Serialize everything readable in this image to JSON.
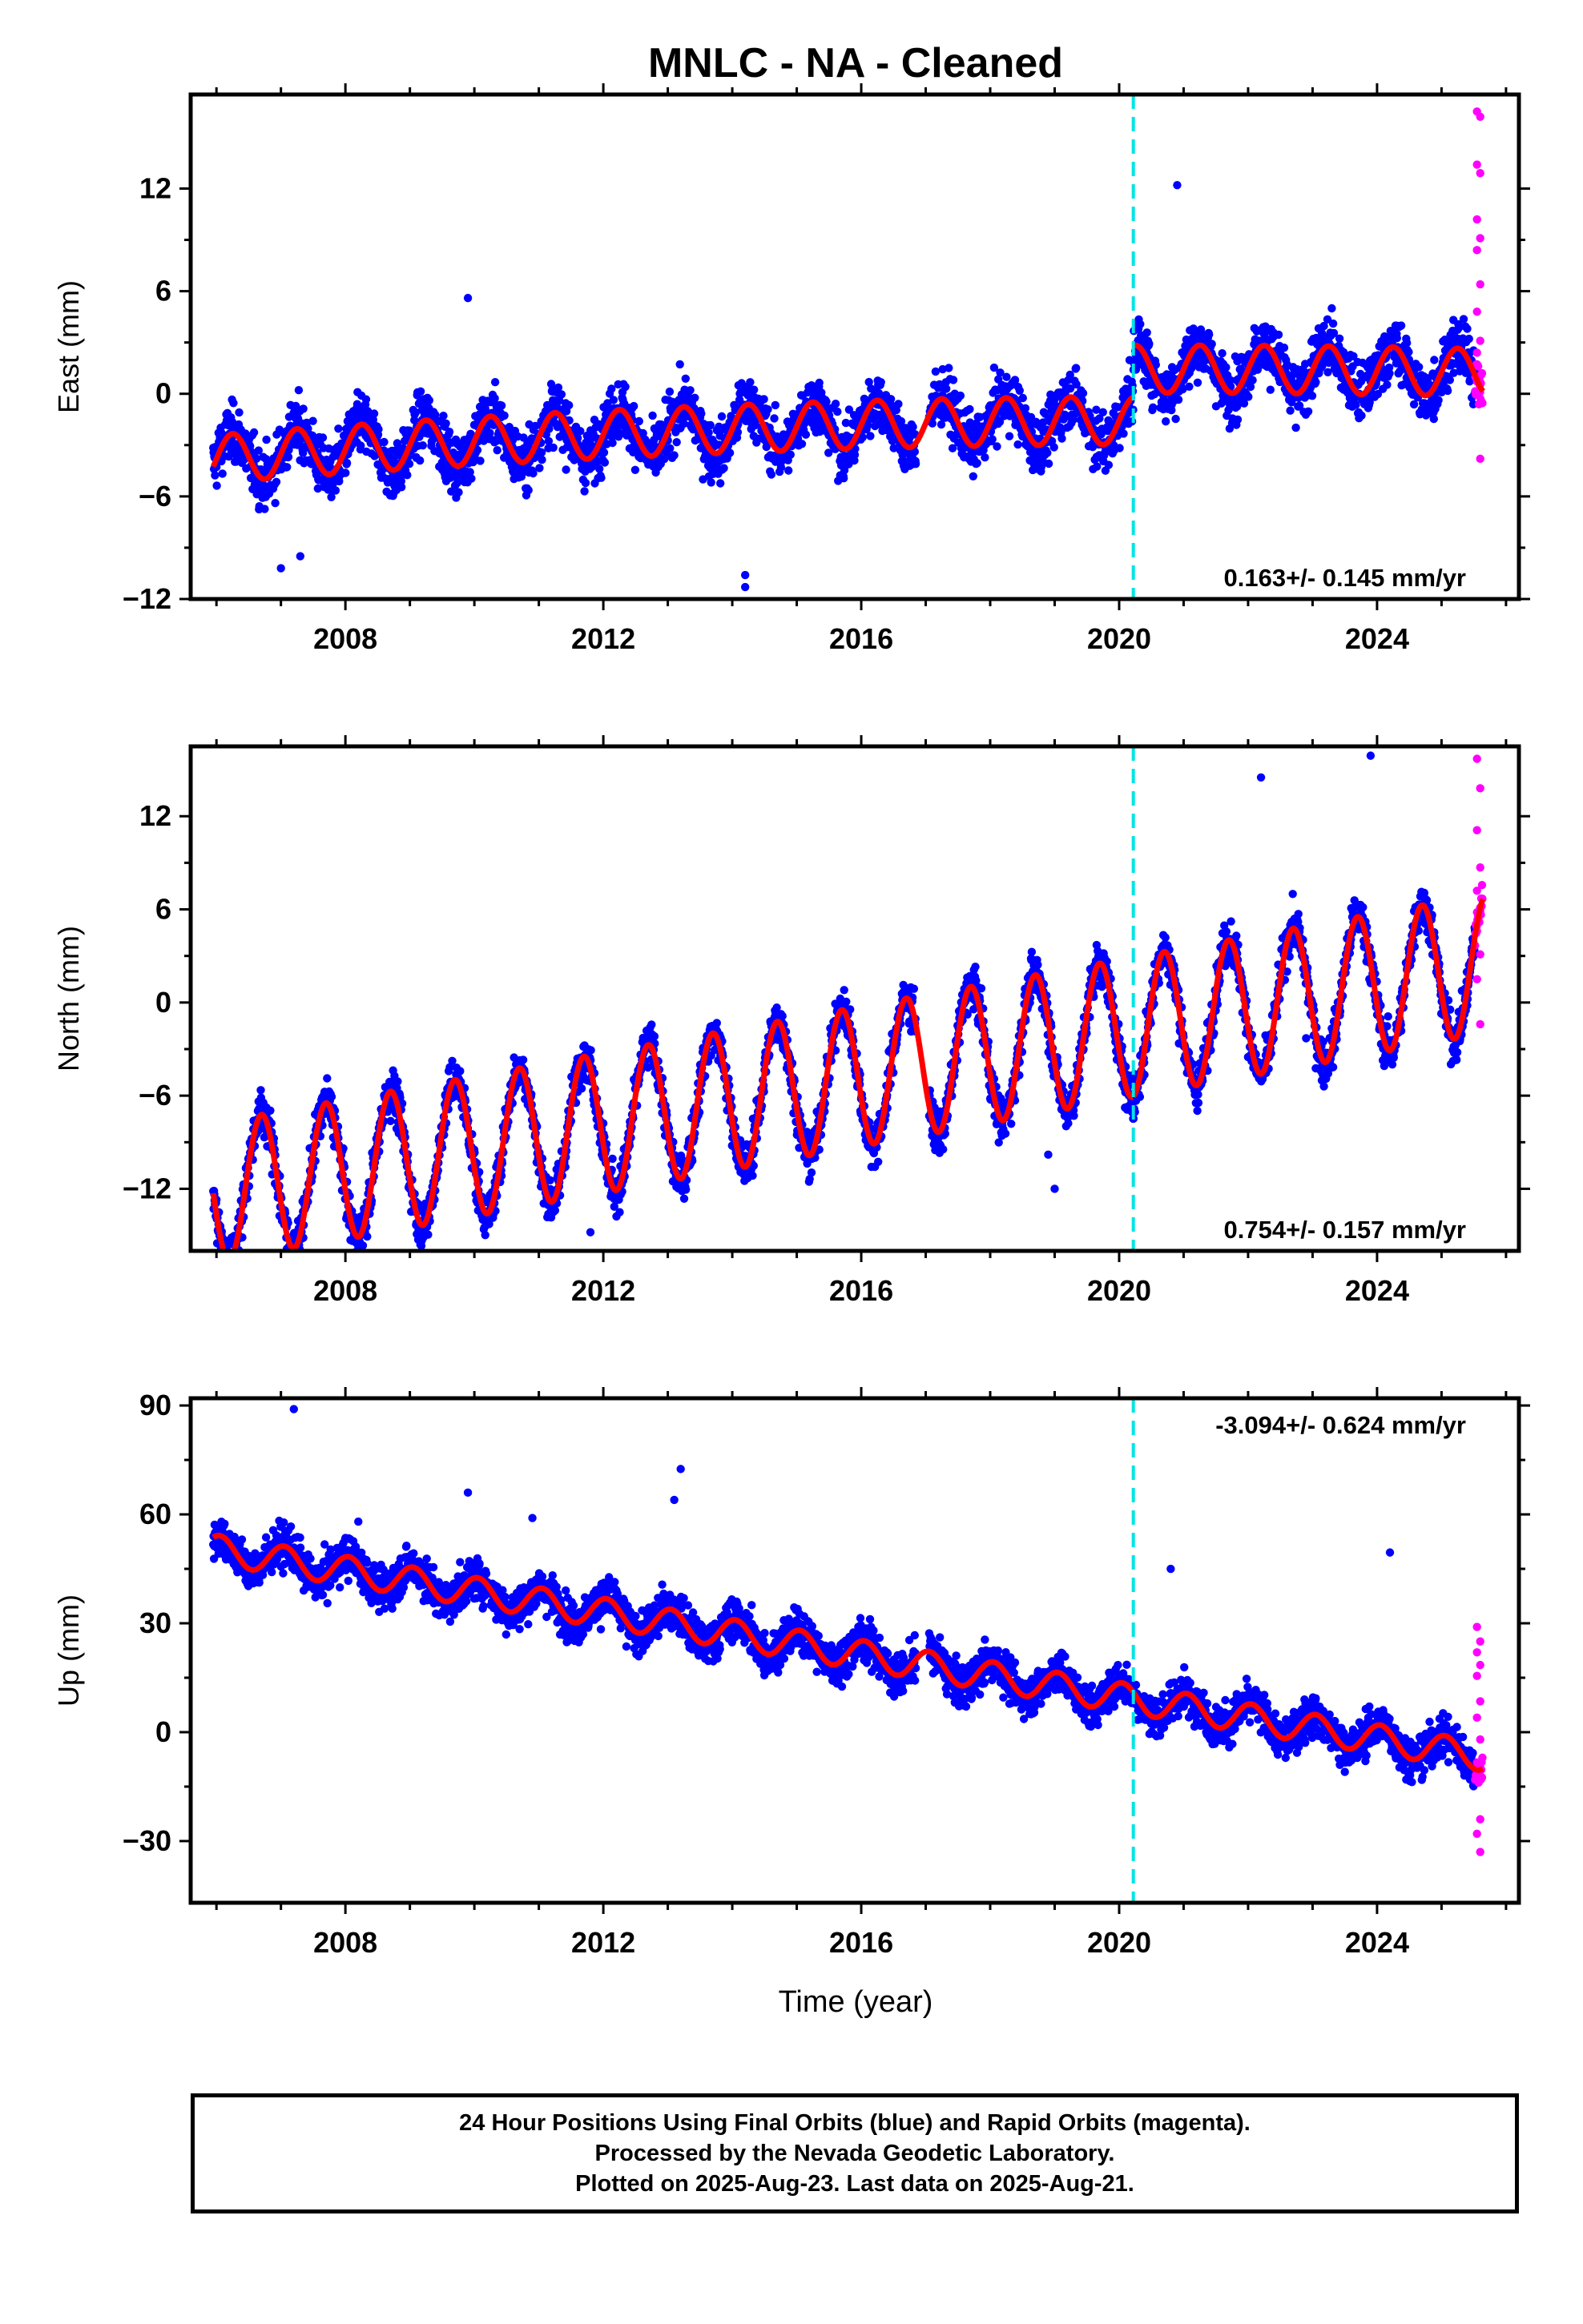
{
  "chart_data": {
    "type": "scatter",
    "title": "MNLC  - NA - Cleaned",
    "colors": {
      "final": "#0000ff",
      "rapid": "#ff00ff",
      "model": "#ff0000",
      "offset": "#00e5e5"
    },
    "xlabel": "Time (year)",
    "xlim": [
      2005.6,
      2026.2
    ],
    "xticks": [
      "2008",
      "2012",
      "2016",
      "2020",
      "2024"
    ],
    "offset_epoch": 2020.22,
    "last_data": 2025.64,
    "panels": [
      {
        "name": "East",
        "ylabel": "East (mm)",
        "ylim": [
          -12,
          17.5
        ],
        "yticks": [
          "-12",
          "-6",
          "0",
          "6",
          "12"
        ],
        "rate": "0.163+/- 0.145 mm/yr",
        "rate_position": "bottom-right",
        "model": {
          "a": -2.2,
          "b": 0.16,
          "c": -0.05,
          "jump": 3.0,
          "amp": 1.4,
          "phase": 0.0,
          "noise": 1.4
        },
        "outliers": [
          [
            2007.3,
            -9.5
          ],
          [
            2007.0,
            -10.2
          ],
          [
            2009.9,
            5.6
          ],
          [
            2014.2,
            -10.6
          ],
          [
            2014.2,
            -11.3
          ],
          [
            2020.9,
            12.2
          ]
        ],
        "rapid": [
          [
            2025.55,
            16.5
          ],
          [
            2025.6,
            16.2
          ],
          [
            2025.55,
            13.4
          ],
          [
            2025.6,
            12.9
          ],
          [
            2025.55,
            10.2
          ],
          [
            2025.6,
            9.1
          ],
          [
            2025.55,
            8.4
          ],
          [
            2025.6,
            6.4
          ],
          [
            2025.55,
            4.8
          ],
          [
            2025.6,
            3.1
          ],
          [
            2025.55,
            2.4
          ],
          [
            2025.6,
            -3.8
          ]
        ]
      },
      {
        "name": "North",
        "ylabel": "North (mm)",
        "ylim": [
          -16,
          16.5
        ],
        "yticks": [
          "-12",
          "-6",
          "0",
          "6",
          "12"
        ],
        "rate": "0.754+/- 0.157 mm/yr",
        "rate_position": "bottom-right",
        "model": {
          "a": -7.0,
          "b": 0.75,
          "c": 0.0,
          "jump": 0.0,
          "amp": 4.5,
          "phase": 0.55,
          "noise": 1.2
        },
        "outliers": [
          [
            2019.0,
            -12.0
          ],
          [
            2018.9,
            -9.8
          ],
          [
            2011.8,
            -14.8
          ],
          [
            2022.9,
            -2.3
          ],
          [
            2023.9,
            15.9
          ],
          [
            2022.2,
            14.5
          ]
        ],
        "rapid": [
          [
            2025.55,
            15.7
          ],
          [
            2025.6,
            13.8
          ],
          [
            2025.55,
            11.1
          ],
          [
            2025.6,
            8.7
          ],
          [
            2025.55,
            7.2
          ],
          [
            2025.6,
            5.9
          ],
          [
            2025.55,
            4.6
          ],
          [
            2025.6,
            3.1
          ],
          [
            2025.55,
            1.5
          ],
          [
            2025.6,
            -1.4
          ]
        ]
      },
      {
        "name": "Up",
        "ylabel": "Up (mm)",
        "ylim": [
          -47,
          92
        ],
        "yticks": [
          "-30",
          "0",
          "30",
          "60",
          "90"
        ],
        "rate": "-3.094+/- 0.624 mm/yr",
        "rate_position": "top-right",
        "model": {
          "a": 30.0,
          "b": -2.9,
          "c": 0.0,
          "jump": 0.0,
          "amp": 4.0,
          "phase": 0.2,
          "noise": 4.8
        },
        "outliers": [
          [
            2007.2,
            89.0
          ],
          [
            2009.9,
            66.0
          ],
          [
            2010.9,
            59.0
          ],
          [
            2013.2,
            72.5
          ],
          [
            2013.1,
            64.0
          ],
          [
            2008.2,
            58.0
          ],
          [
            2020.8,
            45.0
          ],
          [
            2024.2,
            49.5
          ],
          [
            2014.3,
            35.0
          ],
          [
            2012.9,
            36.5
          ]
        ],
        "rapid": [
          [
            2025.55,
            29.0
          ],
          [
            2025.6,
            25.0
          ],
          [
            2025.55,
            22.0
          ],
          [
            2025.6,
            18.5
          ],
          [
            2025.55,
            15.5
          ],
          [
            2025.6,
            8.5
          ],
          [
            2025.55,
            4.0
          ],
          [
            2025.6,
            -2.0
          ],
          [
            2025.55,
            -12.0
          ],
          [
            2025.6,
            -24.0
          ],
          [
            2025.55,
            -28.0
          ],
          [
            2025.6,
            -33.0
          ]
        ]
      }
    ]
  },
  "footer": {
    "line1": "24 Hour Positions Using Final Orbits (blue) and Rapid Orbits (magenta).",
    "line2": "Processed by the Nevada Geodetic Laboratory.",
    "line3": "Plotted on 2025-Aug-23. Last data on 2025-Aug-21."
  }
}
